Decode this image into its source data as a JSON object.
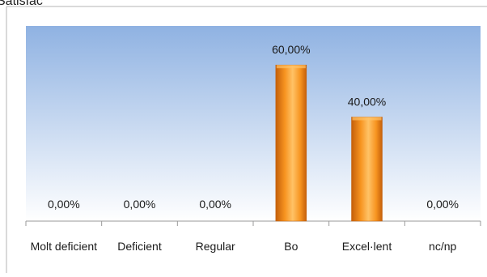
{
  "header_fragment": "Satisfac",
  "chart_data": {
    "type": "bar",
    "categories": [
      "Molt deficient",
      "Deficient",
      "Regular",
      "Bo",
      "Excel·lent",
      "nc/np"
    ],
    "values": [
      0,
      0,
      0,
      60,
      40,
      0
    ],
    "data_labels": [
      "0,00%",
      "0,00%",
      "0,00%",
      "60,00%",
      "40,00%",
      "0,00%"
    ],
    "ylim": [
      0,
      75
    ],
    "grid": false,
    "legend": "none",
    "colors": {
      "bar_main": "#f79420",
      "bar_light": "#ffc266",
      "bar_dark": "#c45f0a",
      "plot_top": "#8fb2e2",
      "plot_bottom": "#ffffff",
      "axis": "#9a9a9a",
      "frame": "#b5b5b5"
    }
  }
}
